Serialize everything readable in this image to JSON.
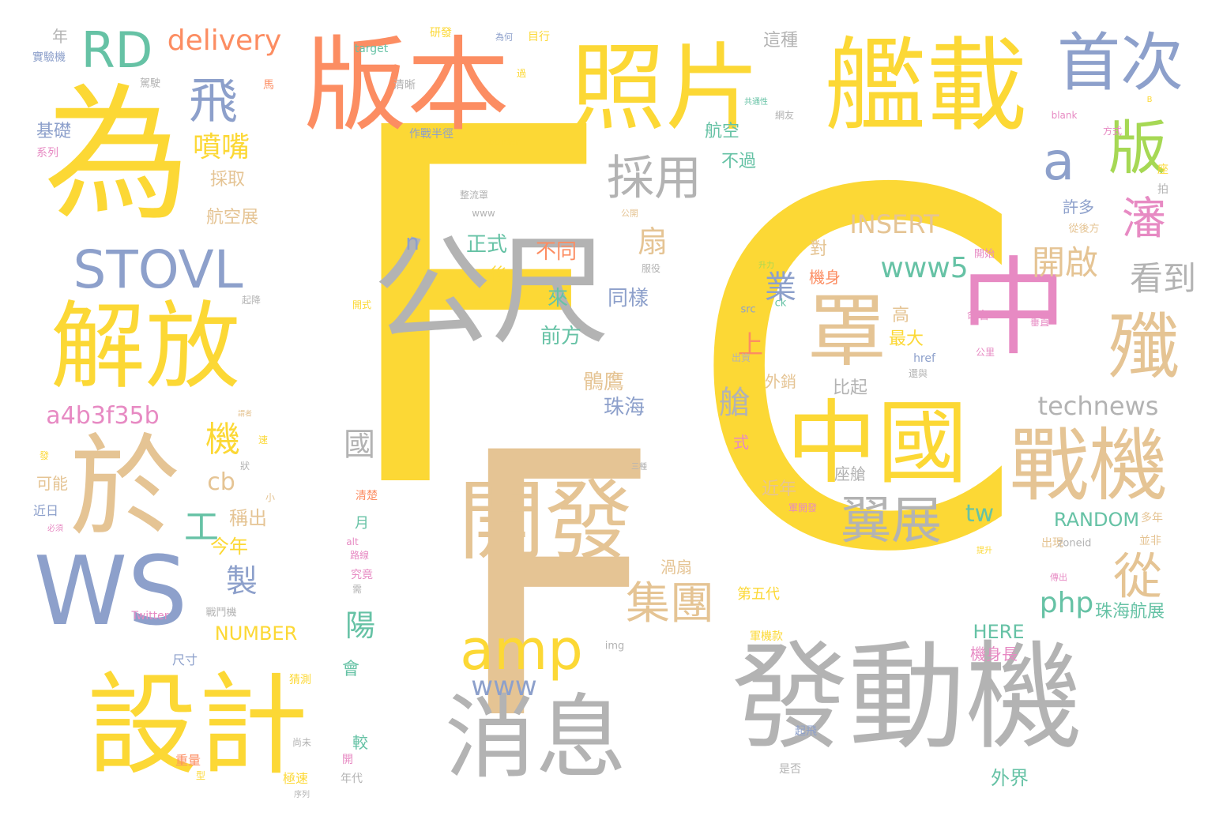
{
  "palette": {
    "yellow": "#fcd835",
    "tan": "#e5c494",
    "gray": "#b3b3b3",
    "blue": "#8da0cb",
    "orange": "#fc8d62",
    "pink": "#e78ac3",
    "green": "#66c2a5",
    "lime": "#a6d854"
  },
  "words": [
    {
      "text": "F",
      "color": "#fcd835"
    },
    {
      "text": "C",
      "color": "#fcd835"
    },
    {
      "text": "F",
      "color": "#e5c494"
    },
    {
      "text": "發動機",
      "color": "#b3b3b3"
    },
    {
      "text": "為",
      "color": "#fcd835"
    },
    {
      "text": "版本",
      "color": "#fc8d62"
    },
    {
      "text": "照片",
      "color": "#fcd835"
    },
    {
      "text": "艦載",
      "color": "#fcd835"
    },
    {
      "text": "首次",
      "color": "#8da0cb"
    },
    {
      "text": "RD",
      "color": "#66c2a5"
    },
    {
      "text": "delivery",
      "color": "#fc8d62"
    },
    {
      "text": "飛",
      "color": "#8da0cb"
    },
    {
      "text": "公尺",
      "color": "#b3b3b3"
    },
    {
      "text": "中",
      "color": "#e78ac3"
    },
    {
      "text": "解放",
      "color": "#fcd835"
    },
    {
      "text": "STOVL",
      "color": "#8da0cb"
    },
    {
      "text": "於",
      "color": "#e5c494"
    },
    {
      "text": "WS",
      "color": "#8da0cb"
    },
    {
      "text": "設計",
      "color": "#fcd835"
    },
    {
      "text": "開發",
      "color": "#e5c494"
    },
    {
      "text": "消息",
      "color": "#b3b3b3"
    },
    {
      "text": "中國",
      "color": "#fcd835"
    },
    {
      "text": "戰機",
      "color": "#e5c494"
    },
    {
      "text": "罩",
      "color": "#e5c494"
    },
    {
      "text": "殲",
      "color": "#e5c494"
    },
    {
      "text": "採用",
      "color": "#b3b3b3"
    },
    {
      "text": "版",
      "color": "#a6d854"
    },
    {
      "text": "a",
      "color": "#8da0cb"
    },
    {
      "text": "瀋",
      "color": "#e78ac3"
    },
    {
      "text": "翼展",
      "color": "#b3b3b3"
    },
    {
      "text": "amp",
      "color": "#fcd835"
    },
    {
      "text": "集團",
      "color": "#e5c494"
    },
    {
      "text": "從",
      "color": "#e5c494"
    },
    {
      "text": "噴嘴",
      "color": "#fcd835"
    },
    {
      "text": "INSERT",
      "color": "#e5c494"
    },
    {
      "text": "www5",
      "color": "#66c2a5"
    },
    {
      "text": "technews",
      "color": "#b3b3b3"
    },
    {
      "text": "開啟",
      "color": "#e5c494"
    },
    {
      "text": "看到",
      "color": "#b3b3b3"
    },
    {
      "text": "a4b3f35b",
      "color": "#e78ac3"
    },
    {
      "text": "機",
      "color": "#fcd835"
    },
    {
      "text": "工",
      "color": "#66c2a5"
    },
    {
      "text": "cb",
      "color": "#e5c494"
    },
    {
      "text": "製",
      "color": "#8da0cb"
    },
    {
      "text": "今年",
      "color": "#fcd835"
    },
    {
      "text": "稱出",
      "color": "#e5c494"
    },
    {
      "text": "扇",
      "color": "#e5c494"
    },
    {
      "text": "業",
      "color": "#8da0cb"
    },
    {
      "text": "上",
      "color": "#fc8d62"
    },
    {
      "text": "艙",
      "color": "#b3b3b3"
    },
    {
      "text": "n",
      "color": "#8da0cb"
    },
    {
      "text": "不同",
      "color": "#fc8d62"
    },
    {
      "text": "正式",
      "color": "#66c2a5"
    },
    {
      "text": "後",
      "color": "#fcd835"
    },
    {
      "text": "來",
      "color": "#66c2a5"
    },
    {
      "text": "同樣",
      "color": "#8da0cb"
    },
    {
      "text": "前方",
      "color": "#66c2a5"
    },
    {
      "text": "鶻鷹",
      "color": "#e5c494"
    },
    {
      "text": "珠海",
      "color": "#8da0cb"
    },
    {
      "text": "國",
      "color": "#b3b3b3"
    },
    {
      "text": "陽",
      "color": "#66c2a5"
    },
    {
      "text": "www",
      "color": "#8da0cb"
    },
    {
      "text": "php",
      "color": "#66c2a5"
    },
    {
      "text": "tw",
      "color": "#66c2a5"
    },
    {
      "text": "RANDOM",
      "color": "#66c2a5"
    },
    {
      "text": "HERE",
      "color": "#66c2a5"
    },
    {
      "text": "機身長",
      "color": "#e78ac3"
    },
    {
      "text": "珠海航展",
      "color": "#66c2a5"
    },
    {
      "text": "外界",
      "color": "#66c2a5"
    },
    {
      "text": "NUMBER",
      "color": "#fcd835"
    },
    {
      "text": "航空",
      "color": "#66c2a5"
    },
    {
      "text": "不過",
      "color": "#66c2a5"
    },
    {
      "text": "航空展",
      "color": "#e5c494"
    },
    {
      "text": "採取",
      "color": "#e5c494"
    },
    {
      "text": "基礎",
      "color": "#8da0cb"
    },
    {
      "text": "這種",
      "color": "#b3b3b3"
    },
    {
      "text": "對",
      "color": "#e5c494"
    },
    {
      "text": "機身",
      "color": "#fc8d62"
    },
    {
      "text": "高",
      "color": "#e5c494"
    },
    {
      "text": "最大",
      "color": "#fcd835"
    },
    {
      "text": "比起",
      "color": "#b3b3b3"
    },
    {
      "text": "外銷",
      "color": "#e5c494"
    },
    {
      "text": "許多",
      "color": "#8da0cb"
    },
    {
      "text": "座艙",
      "color": "#b3b3b3"
    },
    {
      "text": "近年",
      "color": "#e5c494"
    },
    {
      "text": "渦扇",
      "color": "#e5c494"
    },
    {
      "text": "第五代",
      "color": "#fcd835"
    },
    {
      "text": "可能",
      "color": "#e5c494"
    },
    {
      "text": "近日",
      "color": "#8da0cb"
    },
    {
      "text": "月",
      "color": "#66c2a5"
    },
    {
      "text": "會",
      "color": "#66c2a5"
    },
    {
      "text": "較",
      "color": "#66c2a5"
    },
    {
      "text": "式",
      "color": "#e78ac3"
    },
    {
      "text": "出現",
      "color": "#e5c494"
    },
    {
      "text": "target",
      "color": "#66c2a5"
    },
    {
      "text": "研發",
      "color": "#fcd835"
    },
    {
      "text": "目行",
      "color": "#fcd835"
    },
    {
      "text": "年",
      "color": "#b3b3b3"
    },
    {
      "text": "實驗機",
      "color": "#8da0cb"
    },
    {
      "text": "清晰",
      "color": "#b3b3b3"
    },
    {
      "text": "作戰半徑",
      "color": "#8da0cb"
    },
    {
      "text": "border",
      "color": "#fcd835"
    },
    {
      "text": "系列",
      "color": "#e78ac3"
    },
    {
      "text": "開式",
      "color": "#fcd835"
    },
    {
      "text": "稍大",
      "color": "#fcd835"
    },
    {
      "text": "src",
      "color": "#8da0cb"
    },
    {
      "text": "ck",
      "color": "#66c2a5"
    },
    {
      "text": "href",
      "color": "#8da0cb"
    },
    {
      "text": "出資",
      "color": "#b3b3b3"
    },
    {
      "text": "命名",
      "color": "#e78ac3"
    },
    {
      "text": "垂直",
      "color": "#e78ac3"
    },
    {
      "text": "開始",
      "color": "#e78ac3"
    },
    {
      "text": "從後方",
      "color": "#e5c494"
    },
    {
      "text": "blank",
      "color": "#e78ac3"
    },
    {
      "text": "方式",
      "color": "#e78ac3"
    },
    {
      "text": "zoneid",
      "color": "#b3b3b3"
    },
    {
      "text": "多年",
      "color": "#e5c494"
    },
    {
      "text": "並非",
      "color": "#e5c494"
    },
    {
      "text": "Twitter",
      "color": "#e78ac3"
    },
    {
      "text": "戰鬥機",
      "color": "#b3b3b3"
    },
    {
      "text": "尺寸",
      "color": "#8da0cb"
    },
    {
      "text": "猜測",
      "color": "#fcd835"
    },
    {
      "text": "img",
      "color": "#b3b3b3"
    },
    {
      "text": "軍機款",
      "color": "#fcd835"
    },
    {
      "text": "重量",
      "color": "#fc8d62"
    },
    {
      "text": "型",
      "color": "#fcd835"
    },
    {
      "text": "極速",
      "color": "#fcd835"
    },
    {
      "text": "年代",
      "color": "#b3b3b3"
    },
    {
      "text": "尚未",
      "color": "#b3b3b3"
    },
    {
      "text": "起飛",
      "color": "#8da0cb"
    },
    {
      "text": "是否",
      "color": "#b3b3b3"
    },
    {
      "text": "開",
      "color": "#e78ac3"
    },
    {
      "text": "究竟",
      "color": "#e78ac3"
    },
    {
      "text": "需",
      "color": "#b3b3b3"
    },
    {
      "text": "清楚",
      "color": "#fc8d62"
    },
    {
      "text": "路線",
      "color": "#e78ac3"
    },
    {
      "text": "alt",
      "color": "#e78ac3"
    },
    {
      "text": "三種",
      "color": "#b3b3b3"
    },
    {
      "text": "起降",
      "color": "#b3b3b3"
    },
    {
      "text": "服役",
      "color": "#b3b3b3"
    },
    {
      "text": "公開",
      "color": "#e5c494"
    },
    {
      "text": "駕駛",
      "color": "#b3b3b3"
    },
    {
      "text": "馬",
      "color": "#fc8d62"
    },
    {
      "text": "為何",
      "color": "#8da0cb"
    },
    {
      "text": "網友",
      "color": "#b3b3b3"
    },
    {
      "text": "共通性",
      "color": "#66c2a5"
    },
    {
      "text": "整流罩",
      "color": "#b3b3b3"
    },
    {
      "text": "公里",
      "color": "#e78ac3"
    },
    {
      "text": "還與",
      "color": "#b3b3b3"
    },
    {
      "text": "狀",
      "color": "#b3b3b3"
    },
    {
      "text": "速",
      "color": "#fcd835"
    },
    {
      "text": "發",
      "color": "#fcd835"
    },
    {
      "text": "謂者",
      "color": "#e5c494"
    },
    {
      "text": "必須",
      "color": "#e78ac3"
    },
    {
      "text": "升力",
      "color": "#a6d854"
    },
    {
      "text": "傳出",
      "color": "#e78ac3"
    },
    {
      "text": "軍開發",
      "color": "#e78ac3"
    },
    {
      "text": "提升",
      "color": "#fcd835"
    },
    {
      "text": "拍",
      "color": "#b3b3b3"
    },
    {
      "text": "座",
      "color": "#fcd835"
    },
    {
      "text": "B",
      "color": "#fcd835"
    },
    {
      "text": "過",
      "color": "#fcd835"
    },
    {
      "text": "小",
      "color": "#e5c494"
    },
    {
      "text": "www",
      "color": "#b3b3b3"
    },
    {
      "text": "序列",
      "color": "#b3b3b3"
    }
  ]
}
